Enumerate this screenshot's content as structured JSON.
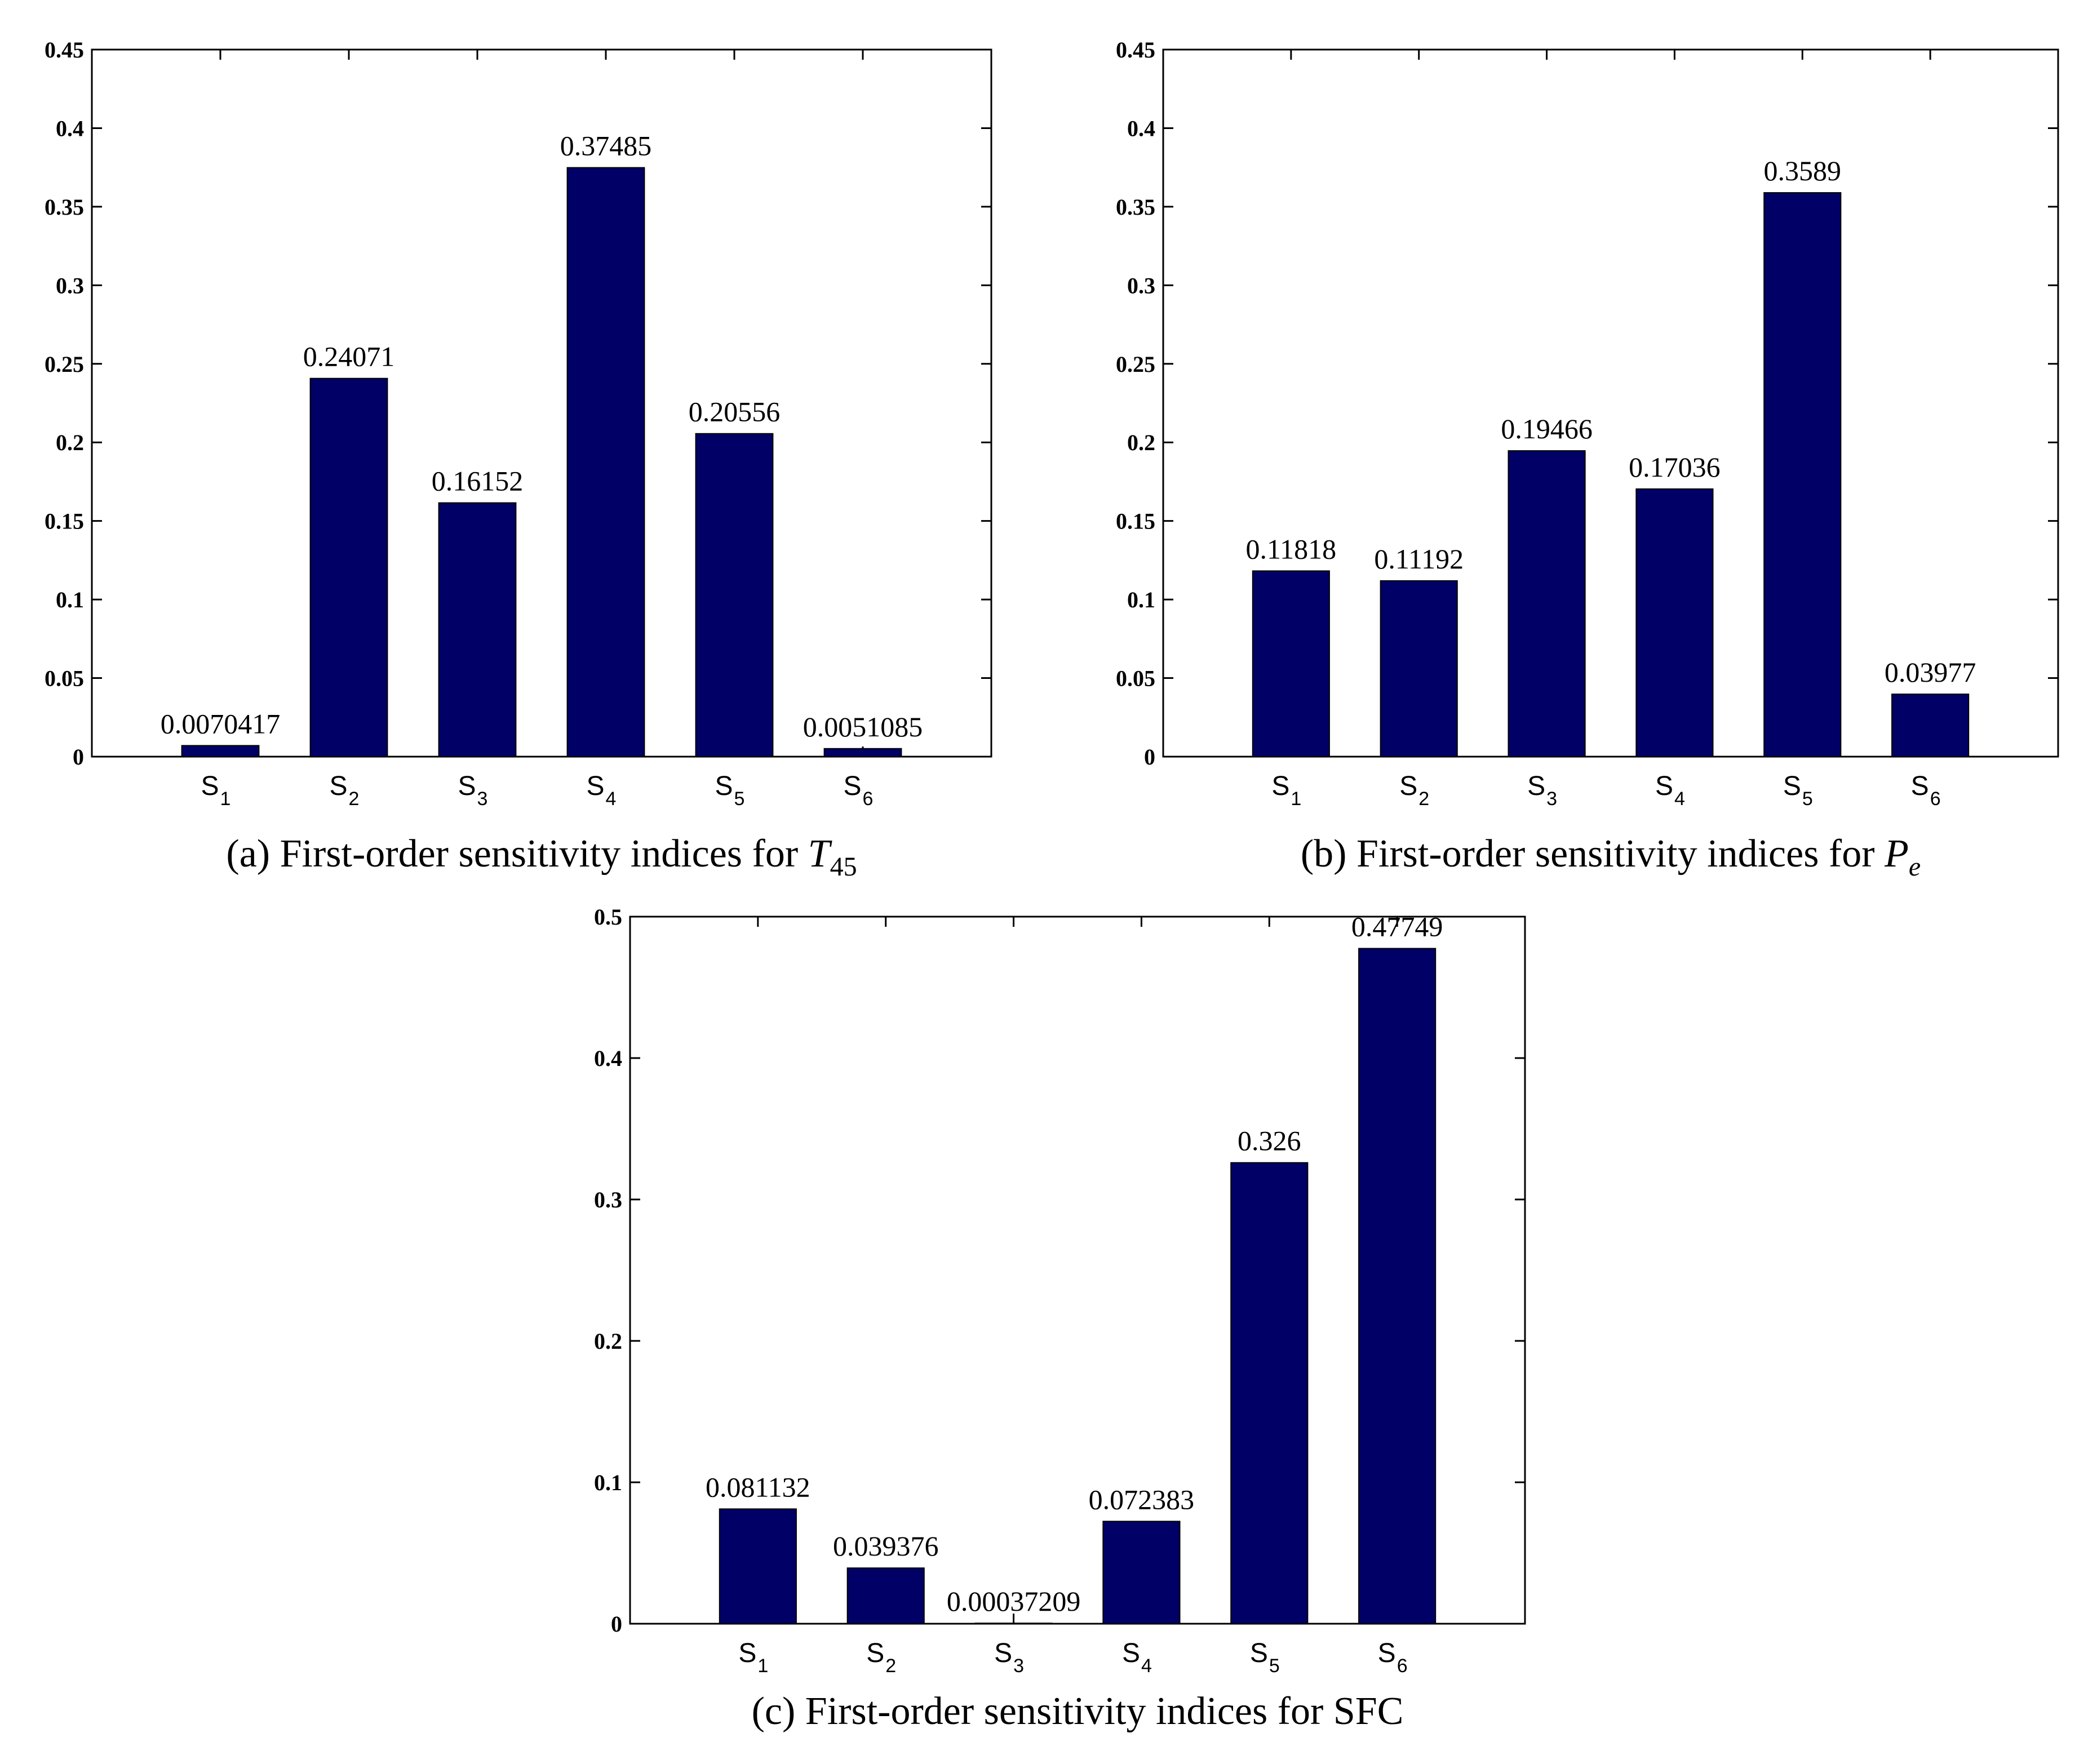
{
  "chart_data": [
    {
      "type": "bar",
      "panel": "a",
      "caption": {
        "prefix": "(a) First-order sensitivity indices for ",
        "symbol": "T",
        "subscript": "45"
      },
      "categories": [
        {
          "main": "S",
          "sub": "1"
        },
        {
          "main": "S",
          "sub": "2"
        },
        {
          "main": "S",
          "sub": "3"
        },
        {
          "main": "S",
          "sub": "4"
        },
        {
          "main": "S",
          "sub": "5"
        },
        {
          "main": "S",
          "sub": "6"
        }
      ],
      "values": [
        0.0070417,
        0.24071,
        0.16152,
        0.37485,
        0.20556,
        0.0051085
      ],
      "value_labels": [
        "0.0070417",
        "0.24071",
        "0.16152",
        "0.37485",
        "0.20556",
        "0.0051085"
      ],
      "ylim": [
        0,
        0.45
      ],
      "yticks": [
        0,
        0.05,
        0.1,
        0.15,
        0.2,
        0.25,
        0.3,
        0.35,
        0.4,
        0.45
      ],
      "ytick_labels": [
        "0",
        "0.05",
        "0.1",
        "0.15",
        "0.2",
        "0.25",
        "0.3",
        "0.35",
        "0.4",
        "0.45"
      ],
      "bar_color": "#000066"
    },
    {
      "type": "bar",
      "panel": "b",
      "caption": {
        "prefix": "(b) First-order sensitivity indices for ",
        "symbol": "P",
        "subscript": "e"
      },
      "categories": [
        {
          "main": "S",
          "sub": "1"
        },
        {
          "main": "S",
          "sub": "2"
        },
        {
          "main": "S",
          "sub": "3"
        },
        {
          "main": "S",
          "sub": "4"
        },
        {
          "main": "S",
          "sub": "5"
        },
        {
          "main": "S",
          "sub": "6"
        }
      ],
      "values": [
        0.11818,
        0.11192,
        0.19466,
        0.17036,
        0.3589,
        0.03977
      ],
      "value_labels": [
        "0.11818",
        "0.11192",
        "0.19466",
        "0.17036",
        "0.3589",
        "0.03977"
      ],
      "ylim": [
        0,
        0.45
      ],
      "yticks": [
        0,
        0.05,
        0.1,
        0.15,
        0.2,
        0.25,
        0.3,
        0.35,
        0.4,
        0.45
      ],
      "ytick_labels": [
        "0",
        "0.05",
        "0.1",
        "0.15",
        "0.2",
        "0.25",
        "0.3",
        "0.35",
        "0.4",
        "0.45"
      ],
      "bar_color": "#000066"
    },
    {
      "type": "bar",
      "panel": "c",
      "caption": {
        "prefix": "(c) First-order sensitivity indices for SFC",
        "symbol": "",
        "subscript": ""
      },
      "categories": [
        {
          "main": "S",
          "sub": "1"
        },
        {
          "main": "S",
          "sub": "2"
        },
        {
          "main": "S",
          "sub": "3"
        },
        {
          "main": "S",
          "sub": "4"
        },
        {
          "main": "S",
          "sub": "5"
        },
        {
          "main": "S",
          "sub": "6"
        }
      ],
      "values": [
        0.081132,
        0.039376,
        0.00037209,
        0.072383,
        0.326,
        0.47749
      ],
      "value_labels": [
        "0.081132",
        "0.039376",
        "0.00037209",
        "0.072383",
        "0.326",
        "0.47749"
      ],
      "ylim": [
        0,
        0.5
      ],
      "yticks": [
        0,
        0.1,
        0.2,
        0.3,
        0.4,
        0.5
      ],
      "ytick_labels": [
        "0",
        "0.1",
        "0.2",
        "0.3",
        "0.4",
        "0.5"
      ],
      "bar_color": "#000066"
    }
  ]
}
